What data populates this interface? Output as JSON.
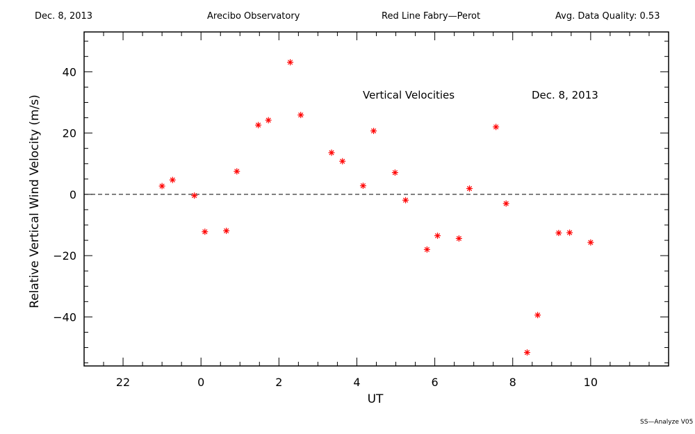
{
  "header": {
    "date": "Dec. 8, 2013",
    "observatory": "Arecibo Observatory",
    "instrument": "Red Line Fabry—Perot",
    "quality": "Avg. Data Quality: 0.53"
  },
  "footer": {
    "version": "SS—Analyze V05"
  },
  "colors": {
    "marker": "#ff0000",
    "axis": "#000000"
  },
  "chart_data": {
    "type": "scatter",
    "title": "Vertical Velocities",
    "subtitle": "Dec. 8, 2013",
    "xlabel": "UT",
    "ylabel": "Relative Vertical Wind Velocity (m/s)",
    "xlim": [
      21,
      36
    ],
    "ylim": [
      -56,
      53
    ],
    "x_ticks": [
      22,
      24,
      26,
      28,
      30,
      32,
      34
    ],
    "x_tick_labels": [
      "22",
      "0",
      "2",
      "4",
      "6",
      "8",
      "10"
    ],
    "y_ticks": [
      -40,
      -20,
      0,
      20,
      40
    ],
    "y_tick_labels": [
      "−40",
      "−20",
      "0",
      "20",
      "40"
    ],
    "zero_line": true,
    "grid": false,
    "series": [
      {
        "marker": "asterisk",
        "x": [
          23.0,
          23.27,
          23.83,
          24.1,
          24.65,
          24.92,
          25.47,
          25.73,
          26.29,
          26.56,
          27.35,
          27.63,
          28.16,
          28.43,
          28.98,
          29.25,
          29.8,
          30.07,
          30.62,
          30.89,
          31.57,
          31.83,
          32.37,
          32.64,
          33.18,
          33.46,
          34.0
        ],
        "y": [
          2.7,
          4.7,
          -0.4,
          -12.2,
          -11.9,
          7.5,
          22.6,
          24.2,
          43.1,
          25.9,
          13.6,
          10.8,
          2.8,
          20.7,
          7.1,
          -1.9,
          -18.0,
          -13.5,
          -14.4,
          1.9,
          22.0,
          -3.0,
          -51.6,
          -39.4,
          -12.6,
          -12.5,
          -15.7
        ]
      }
    ]
  }
}
